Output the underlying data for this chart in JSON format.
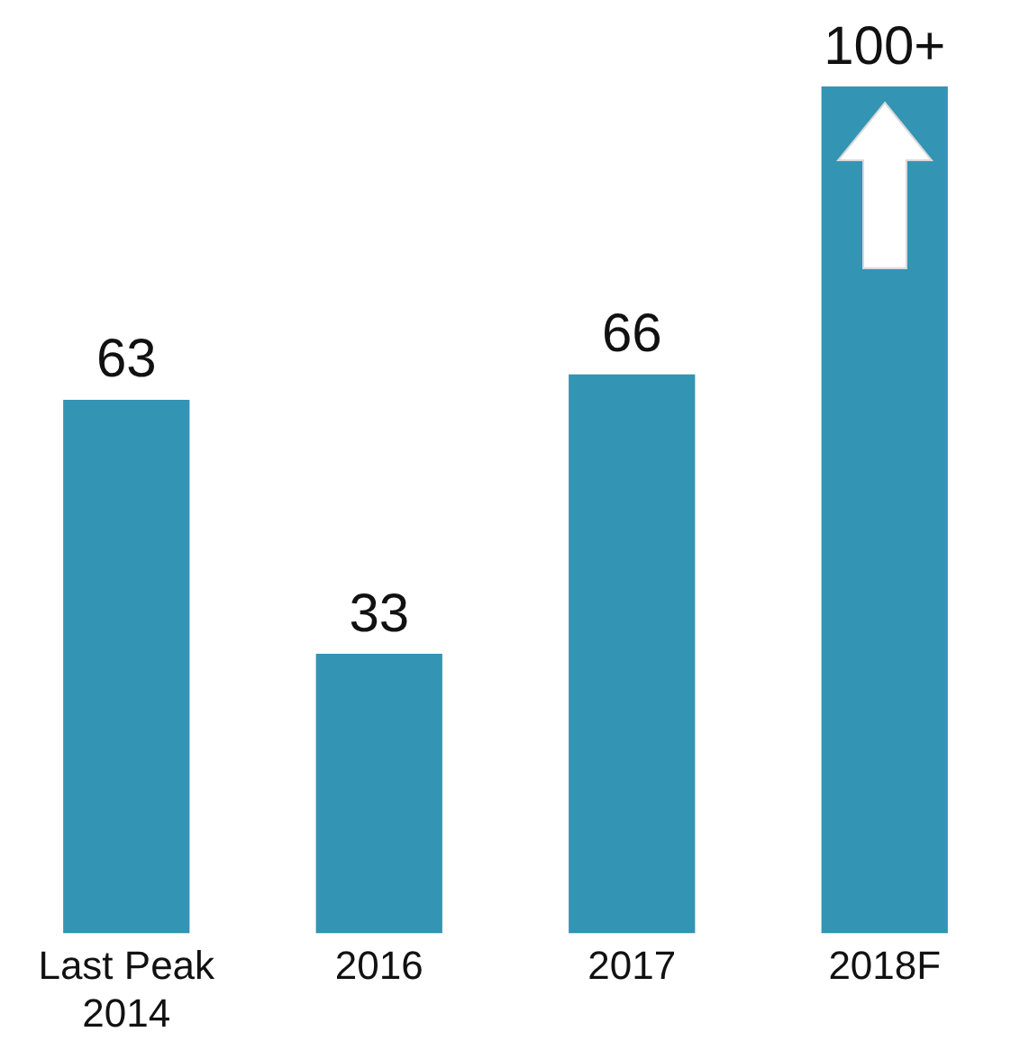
{
  "chart_data": {
    "type": "bar",
    "categories": [
      "Last Peak 2014",
      "2016",
      "2017",
      "2018F"
    ],
    "values": [
      63,
      33,
      66,
      100
    ],
    "color": "#3394b4",
    "value_labels": [
      "63",
      "33",
      "66",
      "100+"
    ]
  }
}
